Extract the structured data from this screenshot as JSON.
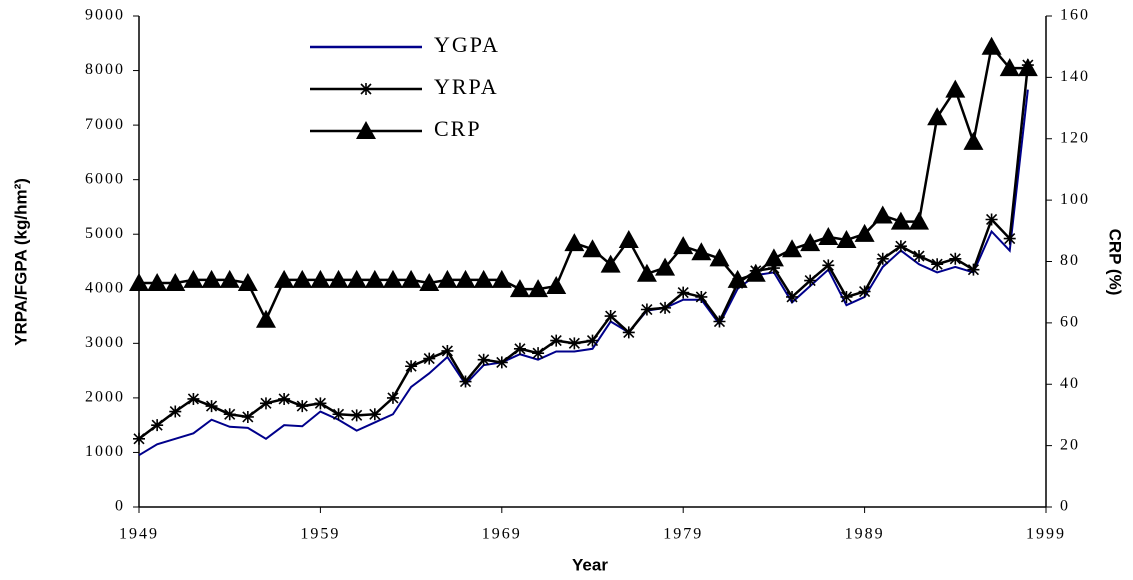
{
  "chart_data": {
    "type": "line",
    "x": [
      1949,
      1950,
      1951,
      1952,
      1953,
      1954,
      1955,
      1956,
      1957,
      1958,
      1959,
      1960,
      1961,
      1962,
      1963,
      1964,
      1965,
      1966,
      1967,
      1968,
      1969,
      1970,
      1971,
      1972,
      1973,
      1974,
      1975,
      1976,
      1977,
      1978,
      1979,
      1980,
      1981,
      1982,
      1983,
      1984,
      1985,
      1986,
      1987,
      1988,
      1989,
      1990,
      1991,
      1992,
      1993,
      1994,
      1995,
      1996,
      1997,
      1998
    ],
    "xlabel": "Year",
    "ylabel": "YRPA/FGPA (kg/hm²)",
    "y2label": "CRP (%)",
    "xlim": [
      1949,
      1999
    ],
    "xticks": [
      1949,
      1959,
      1969,
      1979,
      1989,
      1999
    ],
    "ylim": [
      0,
      9000
    ],
    "yticks": [
      0,
      1000,
      2000,
      3000,
      4000,
      5000,
      6000,
      7000,
      8000,
      9000
    ],
    "y2lim": [
      0,
      160
    ],
    "y2ticks": [
      0,
      20,
      40,
      60,
      80,
      100,
      120,
      140,
      160
    ],
    "series": [
      {
        "name": "YGPA",
        "color": "#00008b",
        "marker": "none",
        "values": [
          950,
          1150,
          1250,
          1350,
          1600,
          1470,
          1450,
          1250,
          1500,
          1480,
          1750,
          1600,
          1400,
          1550,
          1700,
          2200,
          2450,
          2750,
          2250,
          2600,
          2650,
          2800,
          2700,
          2850,
          2850,
          2900,
          3400,
          3200,
          3600,
          3650,
          3800,
          3800,
          3350,
          4000,
          4250,
          4300,
          3750,
          4050,
          4350,
          3700,
          3850,
          4400,
          4700,
          4450,
          4300,
          4400,
          4300,
          5050,
          4700,
          7650
        ]
      },
      {
        "name": "YRPA",
        "color": "#000000",
        "marker": "star",
        "values": [
          1250,
          1500,
          1750,
          1980,
          1850,
          1700,
          1650,
          1900,
          1980,
          1850,
          1900,
          1700,
          1680,
          1700,
          2000,
          2580,
          2720,
          2860,
          2300,
          2700,
          2650,
          2900,
          2820,
          3050,
          3000,
          3050,
          3500,
          3200,
          3620,
          3650,
          3930,
          3850,
          3400,
          4100,
          4330,
          4380,
          3850,
          4150,
          4430,
          3850,
          3950,
          4550,
          4780,
          4600,
          4450,
          4550,
          4350,
          5270,
          4920,
          8100
        ]
      },
      {
        "name": "CRP",
        "color": "#000000",
        "marker": "triangle",
        "axis": "y2",
        "values": [
          73,
          73,
          73,
          74,
          74,
          74,
          73,
          61,
          74,
          74,
          74,
          74,
          74,
          74,
          74,
          74,
          73,
          74,
          74,
          74,
          74,
          71,
          71,
          72,
          86,
          84,
          79,
          87,
          76,
          78,
          85,
          83,
          81,
          74,
          76,
          81,
          84,
          86,
          88,
          87,
          89,
          95,
          93,
          93,
          127,
          136,
          119,
          150,
          143,
          143
        ]
      }
    ]
  }
}
